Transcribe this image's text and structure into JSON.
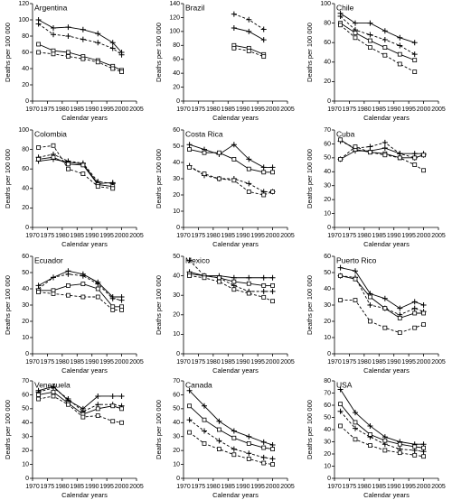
{
  "chart_data": [
    {
      "type": "line",
      "title": "Argentina",
      "x_label": "Calendar years",
      "y_label": "Deaths per 100 000",
      "x": [
        1972,
        1977,
        1982,
        1987,
        1992,
        1997,
        2000
      ],
      "xlim": [
        1970,
        2005
      ],
      "xticks": [
        1970,
        1975,
        1980,
        1985,
        1990,
        1995,
        2000,
        2005
      ],
      "ylim": [
        0,
        120
      ],
      "yticks": [
        0,
        20,
        40,
        60,
        80,
        100,
        120
      ],
      "series": [
        {
          "color": "#000000",
          "dash": false,
          "marker": "plus",
          "values": [
            100,
            90,
            91,
            88,
            83,
            72,
            60
          ]
        },
        {
          "color": "#000000",
          "dash": true,
          "marker": "plus",
          "values": [
            95,
            82,
            80,
            76,
            72,
            65,
            57
          ]
        },
        {
          "color": "#000000",
          "dash": false,
          "marker": "square",
          "values": [
            70,
            62,
            60,
            55,
            50,
            43,
            38
          ]
        },
        {
          "color": "#000000",
          "dash": true,
          "marker": "square",
          "values": [
            60,
            58,
            55,
            52,
            48,
            40,
            36
          ]
        }
      ]
    },
    {
      "type": "line",
      "title": "Brazil",
      "x_label": "Calendar years",
      "y_label": "Deaths per 100 000",
      "x": [
        1972,
        1977,
        1982,
        1987,
        1992,
        1997,
        2000
      ],
      "xlim": [
        1970,
        2005
      ],
      "xticks": [
        1970,
        1975,
        1980,
        1985,
        1990,
        1995,
        2000,
        2005
      ],
      "ylim": [
        0,
        140
      ],
      "yticks": [
        0,
        20,
        40,
        60,
        80,
        100,
        120,
        140
      ],
      "series": [
        {
          "color": "#000000",
          "dash": false,
          "marker": "plus",
          "values": [
            null,
            null,
            null,
            105,
            100,
            88,
            null
          ]
        },
        {
          "color": "#000000",
          "dash": true,
          "marker": "plus",
          "values": [
            null,
            null,
            null,
            125,
            117,
            103,
            null
          ]
        },
        {
          "color": "#000000",
          "dash": false,
          "marker": "square",
          "values": [
            null,
            null,
            null,
            80,
            76,
            67,
            null
          ]
        },
        {
          "color": "#000000",
          "dash": true,
          "marker": "square",
          "values": [
            null,
            null,
            null,
            76,
            72,
            64,
            null
          ]
        }
      ]
    },
    {
      "type": "line",
      "title": "Chile",
      "x_label": "Calendar years",
      "y_label": "Deaths per 100 000",
      "x": [
        1972,
        1977,
        1982,
        1987,
        1992,
        1997,
        2000
      ],
      "xlim": [
        1970,
        2005
      ],
      "xticks": [
        1970,
        1975,
        1980,
        1985,
        1990,
        1995,
        2000,
        2005
      ],
      "ylim": [
        0,
        100
      ],
      "yticks": [
        0,
        20,
        40,
        60,
        80,
        100
      ],
      "series": [
        {
          "color": "#000000",
          "dash": false,
          "marker": "plus",
          "values": [
            90,
            80,
            80,
            72,
            65,
            60,
            null
          ]
        },
        {
          "color": "#000000",
          "dash": true,
          "marker": "plus",
          "values": [
            87,
            73,
            68,
            63,
            57,
            48,
            null
          ]
        },
        {
          "color": "#000000",
          "dash": false,
          "marker": "square",
          "values": [
            80,
            70,
            62,
            55,
            48,
            42,
            null
          ]
        },
        {
          "color": "#000000",
          "dash": true,
          "marker": "square",
          "values": [
            78,
            65,
            55,
            47,
            38,
            30,
            null
          ]
        }
      ]
    },
    {
      "type": "line",
      "title": "Colombia",
      "x_label": "Calendar years",
      "y_label": "Deaths per 100 000",
      "x": [
        1972,
        1977,
        1982,
        1987,
        1992,
        1997,
        2000
      ],
      "xlim": [
        1970,
        2005
      ],
      "xticks": [
        1970,
        1975,
        1980,
        1985,
        1990,
        1995,
        2000,
        2005
      ],
      "ylim": [
        0,
        100
      ],
      "yticks": [
        0,
        20,
        40,
        60,
        80,
        100
      ],
      "series": [
        {
          "color": "#000000",
          "dash": false,
          "marker": "plus",
          "values": [
            68,
            70,
            67,
            65,
            45,
            46,
            null
          ]
        },
        {
          "color": "#000000",
          "dash": true,
          "marker": "plus",
          "values": [
            72,
            75,
            68,
            66,
            47,
            45,
            null
          ]
        },
        {
          "color": "#000000",
          "dash": false,
          "marker": "square",
          "values": [
            70,
            72,
            65,
            64,
            44,
            42,
            null
          ]
        },
        {
          "color": "#000000",
          "dash": true,
          "marker": "square",
          "values": [
            82,
            84,
            60,
            55,
            42,
            40,
            null
          ]
        }
      ]
    },
    {
      "type": "line",
      "title": "Costa Rica",
      "x_label": "Calendar years",
      "y_label": "Deaths per 100 000",
      "x": [
        1972,
        1977,
        1982,
        1987,
        1992,
        1997,
        2000
      ],
      "xlim": [
        1970,
        2005
      ],
      "xticks": [
        1970,
        1975,
        1980,
        1985,
        1990,
        1995,
        2000,
        2005
      ],
      "ylim": [
        0,
        60
      ],
      "yticks": [
        0,
        10,
        20,
        30,
        40,
        50,
        60
      ],
      "series": [
        {
          "color": "#000000",
          "dash": false,
          "marker": "plus",
          "values": [
            51,
            48,
            45,
            51,
            42,
            37,
            37
          ]
        },
        {
          "color": "#000000",
          "dash": true,
          "marker": "plus",
          "values": [
            38,
            32,
            30,
            30,
            27,
            22,
            22
          ]
        },
        {
          "color": "#000000",
          "dash": false,
          "marker": "square",
          "values": [
            48,
            46,
            46,
            42,
            36,
            34,
            34
          ]
        },
        {
          "color": "#000000",
          "dash": true,
          "marker": "square",
          "values": [
            37,
            33,
            30,
            29,
            22,
            20,
            22
          ]
        }
      ]
    },
    {
      "type": "line",
      "title": "Cuba",
      "x_label": "Calendar years",
      "y_label": "Deaths per 100 000",
      "x": [
        1972,
        1977,
        1982,
        1987,
        1992,
        1997,
        2000
      ],
      "xlim": [
        1970,
        2005
      ],
      "xticks": [
        1970,
        1975,
        1980,
        1985,
        1990,
        1995,
        2000,
        2005
      ],
      "ylim": [
        0,
        70
      ],
      "yticks": [
        0,
        10,
        20,
        30,
        40,
        50,
        60,
        70
      ],
      "series": [
        {
          "color": "#000000",
          "dash": false,
          "marker": "plus",
          "values": [
            49,
            55,
            55,
            57,
            53,
            53,
            53
          ]
        },
        {
          "color": "#000000",
          "dash": true,
          "marker": "plus",
          "values": [
            62,
            57,
            58,
            61,
            53,
            50,
            52
          ]
        },
        {
          "color": "#000000",
          "dash": false,
          "marker": "square",
          "values": [
            63,
            56,
            54,
            53,
            50,
            50,
            52
          ]
        },
        {
          "color": "#000000",
          "dash": true,
          "marker": "square",
          "values": [
            49,
            58,
            54,
            52,
            50,
            45,
            41
          ]
        }
      ]
    },
    {
      "type": "line",
      "title": "Ecuador",
      "x_label": "Calendar years",
      "y_label": "Deaths per 100 000",
      "x": [
        1972,
        1977,
        1982,
        1987,
        1992,
        1997,
        2000
      ],
      "xlim": [
        1970,
        2005
      ],
      "xticks": [
        1970,
        1975,
        1980,
        1985,
        1990,
        1995,
        2000,
        2005
      ],
      "ylim": [
        0,
        60
      ],
      "yticks": [
        0,
        10,
        20,
        30,
        40,
        50,
        60
      ],
      "series": [
        {
          "color": "#000000",
          "dash": false,
          "marker": "plus",
          "values": [
            42,
            47,
            51,
            49,
            44,
            35,
            35
          ]
        },
        {
          "color": "#000000",
          "dash": true,
          "marker": "plus",
          "values": [
            40,
            47,
            49,
            48,
            43,
            34,
            33
          ]
        },
        {
          "color": "#000000",
          "dash": false,
          "marker": "square",
          "values": [
            39,
            39,
            42,
            43,
            40,
            29,
            29
          ]
        },
        {
          "color": "#000000",
          "dash": true,
          "marker": "square",
          "values": [
            38,
            37,
            36,
            35,
            35,
            27,
            27
          ]
        }
      ]
    },
    {
      "type": "line",
      "title": "Mexico",
      "x_label": "Calendar years",
      "y_label": "Deaths per 100 000",
      "x": [
        1972,
        1977,
        1982,
        1987,
        1992,
        1997,
        2000
      ],
      "xlim": [
        1970,
        2005
      ],
      "xticks": [
        1970,
        1975,
        1980,
        1985,
        1990,
        1995,
        2000,
        2005
      ],
      "ylim": [
        0,
        50
      ],
      "yticks": [
        0,
        10,
        20,
        30,
        40,
        50
      ],
      "series": [
        {
          "color": "#000000",
          "dash": false,
          "marker": "plus",
          "values": [
            42,
            40,
            40,
            39,
            39,
            39,
            39
          ]
        },
        {
          "color": "#000000",
          "dash": true,
          "marker": "plus",
          "values": [
            48,
            40,
            39,
            35,
            32,
            32,
            32
          ]
        },
        {
          "color": "#000000",
          "dash": false,
          "marker": "square",
          "values": [
            41,
            40,
            39,
            37,
            36,
            35,
            35
          ]
        },
        {
          "color": "#000000",
          "dash": true,
          "marker": "square",
          "values": [
            40,
            39,
            37,
            33,
            31,
            29,
            27
          ]
        }
      ]
    },
    {
      "type": "line",
      "title": "Puerto Rico",
      "x_label": "Calendar years",
      "y_label": "Deaths per 100 000",
      "x": [
        1972,
        1977,
        1982,
        1987,
        1992,
        1997,
        2000
      ],
      "xlim": [
        1970,
        2005
      ],
      "xticks": [
        1970,
        1975,
        1980,
        1985,
        1990,
        1995,
        2000,
        2005
      ],
      "ylim": [
        0,
        60
      ],
      "yticks": [
        0,
        10,
        20,
        30,
        40,
        50,
        60
      ],
      "series": [
        {
          "color": "#000000",
          "dash": false,
          "marker": "plus",
          "values": [
            53,
            51,
            37,
            34,
            28,
            32,
            30
          ]
        },
        {
          "color": "#000000",
          "dash": true,
          "marker": "plus",
          "values": [
            48,
            47,
            30,
            28,
            24,
            28,
            26
          ]
        },
        {
          "color": "#000000",
          "dash": false,
          "marker": "square",
          "values": [
            48,
            46,
            35,
            28,
            22,
            25,
            25
          ]
        },
        {
          "color": "#000000",
          "dash": true,
          "marker": "square",
          "values": [
            33,
            33,
            20,
            16,
            13,
            16,
            18
          ]
        }
      ]
    },
    {
      "type": "line",
      "title": "Venezuela",
      "x_label": "Calendar years",
      "y_label": "Deaths per 100 000",
      "x": [
        1972,
        1977,
        1982,
        1987,
        1992,
        1997,
        2000
      ],
      "xlim": [
        1970,
        2005
      ],
      "xticks": [
        1970,
        1975,
        1980,
        1985,
        1990,
        1995,
        2000,
        2005
      ],
      "ylim": [
        0,
        70
      ],
      "yticks": [
        0,
        10,
        20,
        30,
        40,
        50,
        60,
        70
      ],
      "series": [
        {
          "color": "#000000",
          "dash": false,
          "marker": "plus",
          "values": [
            63,
            66,
            56,
            50,
            59,
            59,
            59
          ]
        },
        {
          "color": "#000000",
          "dash": true,
          "marker": "plus",
          "values": [
            62,
            65,
            57,
            48,
            53,
            53,
            52
          ]
        },
        {
          "color": "#000000",
          "dash": false,
          "marker": "square",
          "values": [
            60,
            62,
            54,
            46,
            50,
            52,
            50
          ]
        },
        {
          "color": "#000000",
          "dash": true,
          "marker": "square",
          "values": [
            57,
            59,
            53,
            44,
            45,
            41,
            40
          ]
        }
      ]
    },
    {
      "type": "line",
      "title": "Canada",
      "x_label": "Calendar years",
      "y_label": "Deaths per 100 000",
      "x": [
        1972,
        1977,
        1982,
        1987,
        1992,
        1997,
        2000
      ],
      "xlim": [
        1970,
        2005
      ],
      "xticks": [
        1970,
        1975,
        1980,
        1985,
        1990,
        1995,
        2000,
        2005
      ],
      "ylim": [
        0,
        70
      ],
      "yticks": [
        0,
        10,
        20,
        30,
        40,
        50,
        60,
        70
      ],
      "series": [
        {
          "color": "#000000",
          "dash": false,
          "marker": "plus",
          "values": [
            63,
            52,
            41,
            34,
            30,
            26,
            24
          ]
        },
        {
          "color": "#000000",
          "dash": true,
          "marker": "plus",
          "values": [
            42,
            34,
            27,
            21,
            18,
            15,
            14
          ]
        },
        {
          "color": "#000000",
          "dash": false,
          "marker": "square",
          "values": [
            52,
            42,
            35,
            29,
            25,
            22,
            21
          ]
        },
        {
          "color": "#000000",
          "dash": true,
          "marker": "square",
          "values": [
            33,
            25,
            21,
            17,
            14,
            11,
            10
          ]
        }
      ]
    },
    {
      "type": "line",
      "title": "USA",
      "x_label": "Calendar years",
      "y_label": "Deaths per 100 000",
      "x": [
        1972,
        1977,
        1982,
        1987,
        1992,
        1997,
        2000
      ],
      "xlim": [
        1970,
        2005
      ],
      "xticks": [
        1970,
        1975,
        1980,
        1985,
        1990,
        1995,
        2000,
        2005
      ],
      "ylim": [
        0,
        80
      ],
      "yticks": [
        0,
        10,
        20,
        30,
        40,
        50,
        60,
        70,
        80
      ],
      "series": [
        {
          "color": "#000000",
          "dash": false,
          "marker": "plus",
          "values": [
            73,
            54,
            43,
            34,
            30,
            28,
            28
          ]
        },
        {
          "color": "#000000",
          "dash": true,
          "marker": "plus",
          "values": [
            55,
            41,
            34,
            28,
            24,
            23,
            22
          ]
        },
        {
          "color": "#000000",
          "dash": false,
          "marker": "square",
          "values": [
            61,
            46,
            36,
            31,
            28,
            26,
            25
          ]
        },
        {
          "color": "#000000",
          "dash": true,
          "marker": "square",
          "values": [
            43,
            32,
            27,
            23,
            21,
            19,
            18
          ]
        }
      ]
    }
  ]
}
